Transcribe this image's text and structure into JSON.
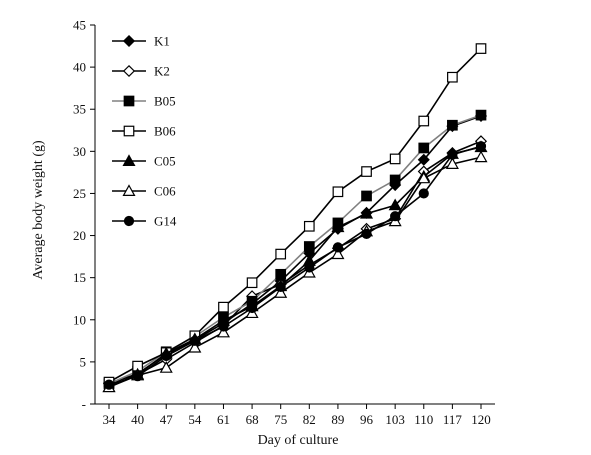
{
  "chart_data": {
    "type": "line",
    "xlabel": "Day of culture",
    "ylabel": "Average body weight (g)",
    "categories": [
      "34",
      "40",
      "47",
      "54",
      "61",
      "68",
      "75",
      "82",
      "89",
      "96",
      "103",
      "110",
      "117",
      "120"
    ],
    "ylim": [
      0,
      45
    ],
    "yticks": [
      0,
      5,
      10,
      15,
      20,
      25,
      30,
      35,
      40,
      45
    ],
    "ytick_labels": [
      "-",
      "5",
      "10",
      "15",
      "20",
      "25",
      "30",
      "35",
      "40",
      "45"
    ],
    "grid": false,
    "legend_position": "top-left",
    "series": [
      {
        "name": "K1",
        "marker": "diamond-filled",
        "line_color": "#000000",
        "values": [
          2.4,
          3.6,
          5.9,
          7.6,
          9.6,
          11.9,
          14.6,
          17.9,
          20.8,
          22.7,
          26.0,
          29.0,
          33.0,
          34.2
        ]
      },
      {
        "name": "K2",
        "marker": "diamond-open",
        "line_color": "#000000",
        "values": [
          2.5,
          3.5,
          5.3,
          7.3,
          9.3,
          12.8,
          14.2,
          16.5,
          18.5,
          20.8,
          22.0,
          27.6,
          29.8,
          31.2
        ]
      },
      {
        "name": "B05",
        "marker": "square-filled",
        "line_color": "#808080",
        "values": [
          2.4,
          3.9,
          6.2,
          8.0,
          10.3,
          12.2,
          15.4,
          18.7,
          21.5,
          24.7,
          26.6,
          30.4,
          33.1,
          34.3
        ]
      },
      {
        "name": "B06",
        "marker": "square-open",
        "line_color": "#000000",
        "values": [
          2.6,
          4.5,
          6.1,
          8.1,
          11.5,
          14.4,
          17.8,
          21.1,
          25.2,
          27.6,
          29.1,
          33.6,
          38.8,
          42.2
        ]
      },
      {
        "name": "C05",
        "marker": "triangle-filled",
        "line_color": "#000000",
        "values": [
          2.0,
          3.5,
          6.0,
          7.7,
          9.9,
          11.6,
          14.0,
          17.0,
          21.0,
          22.6,
          23.6,
          27.0,
          29.7,
          30.5
        ]
      },
      {
        "name": "C06",
        "marker": "triangle-open",
        "line_color": "#000000",
        "values": [
          2.0,
          3.4,
          4.3,
          6.7,
          8.5,
          10.8,
          13.2,
          15.6,
          17.8,
          20.5,
          21.7,
          26.8,
          28.5,
          29.3
        ]
      },
      {
        "name": "G14",
        "marker": "circle-filled",
        "line_color": "#000000",
        "values": [
          2.3,
          3.3,
          5.7,
          7.5,
          9.2,
          11.4,
          13.9,
          16.2,
          18.6,
          20.2,
          22.3,
          25.0,
          29.6,
          30.6
        ]
      }
    ]
  }
}
